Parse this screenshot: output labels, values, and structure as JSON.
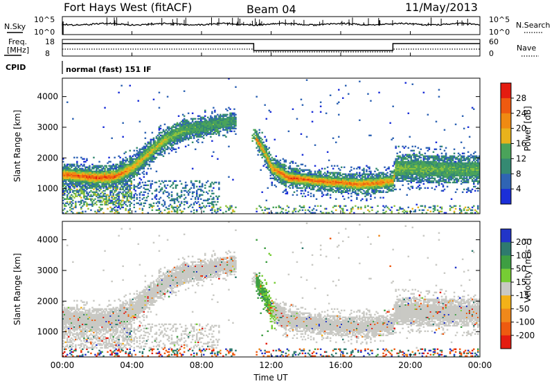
{
  "header": {
    "radar": "Fort Hays West (fitACF)",
    "beam": "Beam 04",
    "date": "11/May/2013"
  },
  "summary": {
    "nsky_label": "N.Sky",
    "nsky_ticks": [
      "10^5",
      "10^0"
    ],
    "nsearch_label": "N.Search",
    "nsearch_ticks": [
      "10^5",
      "10^0"
    ],
    "freq_label_line1": "Freq.",
    "freq_label_line2": "[MHz]",
    "freq_ticks": [
      "18",
      "8"
    ],
    "nave_label": "Nave",
    "nave_ticks": [
      "60",
      "0"
    ],
    "cpid_label": "CPID",
    "cpid_value": "normal (fast) 151 IF"
  },
  "x_axis": {
    "label": "Time UT",
    "ticks": [
      "00:00",
      "04:00",
      "08:00",
      "12:00",
      "16:00",
      "20:00",
      "00:00"
    ]
  },
  "colorbars": {
    "power": {
      "label": "Power [dB]",
      "ticks": [
        "28",
        "24",
        "20",
        "16",
        "12",
        "8",
        "4"
      ]
    },
    "velocity": {
      "label": "Velocity [m s⁻¹]",
      "ticks": [
        "200",
        "100",
        "50",
        "15",
        "-15",
        "-50",
        "-100",
        "-200"
      ]
    }
  },
  "chart_data": [
    {
      "type": "heatmap",
      "name": "power-panel",
      "xlabel": "Time UT",
      "ylabel": "Slant Range [km]",
      "xlim": [
        0,
        24
      ],
      "ylim": [
        180,
        4600
      ],
      "yticks": [
        1000,
        2000,
        3000,
        4000
      ],
      "color_label": "Power [dB]",
      "color_range": [
        0,
        32
      ],
      "band_center_km": [
        [
          0,
          1430
        ],
        [
          1,
          1380
        ],
        [
          2,
          1330
        ],
        [
          3,
          1360
        ],
        [
          4,
          1650
        ],
        [
          5,
          2150
        ],
        [
          5.7,
          2500
        ],
        [
          6.3,
          2700
        ],
        [
          7,
          2880
        ],
        [
          8,
          2980
        ],
        [
          9,
          3100
        ],
        [
          9.9,
          3180
        ],
        [
          11.1,
          2600
        ],
        [
          11.6,
          2150
        ],
        [
          12,
          1650
        ],
        [
          13,
          1320
        ],
        [
          15,
          1200
        ],
        [
          17,
          1120
        ],
        [
          18,
          1150
        ],
        [
          19,
          1220
        ],
        [
          19.1,
          1620
        ],
        [
          20,
          1640
        ],
        [
          22,
          1600
        ],
        [
          24,
          1600
        ]
      ],
      "band_peak_db": [
        [
          0,
          28
        ],
        [
          1,
          28
        ],
        [
          2,
          29
        ],
        [
          3,
          28
        ],
        [
          4,
          22
        ],
        [
          5,
          20
        ],
        [
          6,
          18
        ],
        [
          7,
          14
        ],
        [
          8,
          12
        ],
        [
          9,
          12
        ],
        [
          9.9,
          10
        ],
        [
          11.1,
          26
        ],
        [
          11.6,
          22
        ],
        [
          12,
          24
        ],
        [
          13,
          28
        ],
        [
          15,
          27
        ],
        [
          17,
          26
        ],
        [
          19,
          24
        ],
        [
          19.1,
          16
        ],
        [
          20,
          15
        ],
        [
          22,
          14
        ],
        [
          24,
          13
        ]
      ],
      "band_width_km": [
        [
          0,
          380
        ],
        [
          3,
          420
        ],
        [
          6,
          380
        ],
        [
          9,
          320
        ],
        [
          9.9,
          280
        ],
        [
          11.1,
          300
        ],
        [
          12,
          380
        ],
        [
          15,
          340
        ],
        [
          19,
          360
        ],
        [
          19.1,
          460
        ],
        [
          22,
          480
        ],
        [
          24,
          460
        ]
      ]
    },
    {
      "type": "heatmap",
      "name": "velocity-panel",
      "xlabel": "Time UT",
      "ylabel": "Slant Range [km]",
      "xlim": [
        0,
        24
      ],
      "ylim": [
        180,
        4600
      ],
      "yticks": [
        1000,
        2000,
        3000,
        4000
      ],
      "color_label": "Velocity [m s⁻¹]",
      "color_range": [
        -250,
        250
      ],
      "dominant_velocity": [
        [
          0,
          0
        ],
        [
          4,
          -5
        ],
        [
          8,
          0
        ],
        [
          9.9,
          0
        ],
        [
          11.1,
          40
        ],
        [
          11.8,
          30
        ],
        [
          12.5,
          0
        ],
        [
          16,
          0
        ],
        [
          19,
          0
        ],
        [
          24,
          0
        ]
      ]
    }
  ]
}
